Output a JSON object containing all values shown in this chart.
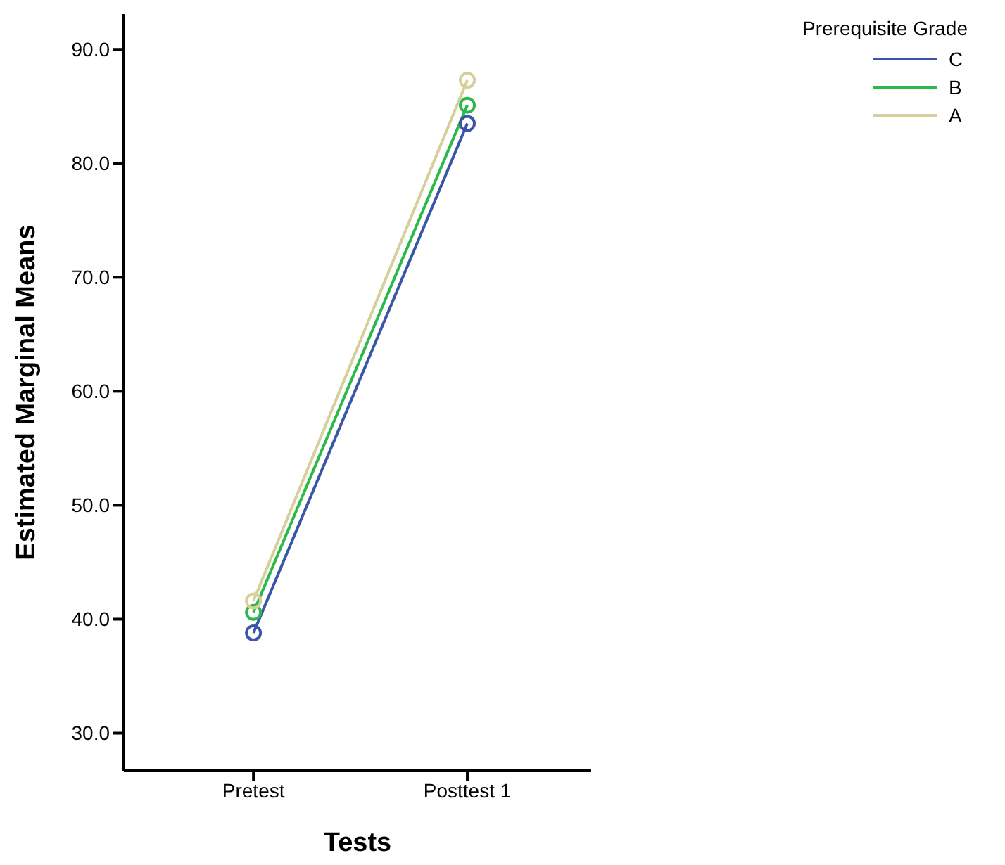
{
  "chart_data": {
    "type": "line",
    "xlabel": "Tests",
    "ylabel": "Estimated Marginal Means",
    "legend_title": "Prerequisite Grade",
    "categories": [
      "Pretest",
      "Posttest 1"
    ],
    "series": [
      {
        "name": "C",
        "color": "#3a56a8",
        "values": [
          38.8,
          83.5
        ]
      },
      {
        "name": "B",
        "color": "#2db84a",
        "values": [
          40.6,
          85.1
        ]
      },
      {
        "name": "A",
        "color": "#d6cf9a",
        "values": [
          41.6,
          87.3
        ]
      }
    ],
    "ylim": [
      26.7,
      93.1
    ],
    "yticks": [
      {
        "value": 30,
        "label": "30.0"
      },
      {
        "value": 40,
        "label": "40.0"
      },
      {
        "value": 50,
        "label": "50.0"
      },
      {
        "value": 60,
        "label": "60.0"
      },
      {
        "value": 70,
        "label": "70.0"
      },
      {
        "value": 80,
        "label": "80.0"
      },
      {
        "value": 90,
        "label": "90.0"
      }
    ],
    "legend": "top right",
    "marker": "circle",
    "line_style": "solid",
    "grid": false
  }
}
